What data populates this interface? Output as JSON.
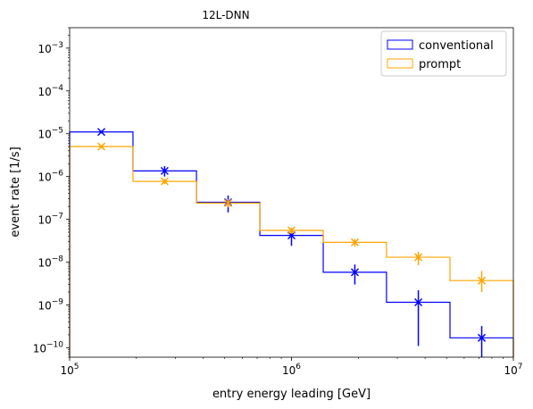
{
  "chart_data": {
    "type": "histogram",
    "title": "12L-DNN",
    "xlabel": "entry energy leading [GeV]",
    "ylabel": "event rate [1/s]",
    "xscale": "log",
    "yscale": "log",
    "xlim": [
      100000,
      10000000
    ],
    "ylim": [
      6e-11,
      0.003
    ],
    "legend_position": "top-right",
    "bin_edges": [
      100000,
      193000,
      373000,
      720000,
      1390000,
      2680000,
      5180000,
      10000000
    ],
    "bin_centers": [
      139000,
      268000,
      518000,
      1000000,
      1930000,
      3730000,
      7200000
    ],
    "x_ticks": [
      {
        "value": 100000,
        "base": "10",
        "exp": "5"
      },
      {
        "value": 1000000,
        "base": "10",
        "exp": "6"
      },
      {
        "value": 10000000,
        "base": "10",
        "exp": "7"
      }
    ],
    "y_ticks": [
      {
        "value": 1e-10,
        "base": "10",
        "exp": "−10"
      },
      {
        "value": 1e-09,
        "base": "10",
        "exp": "−9"
      },
      {
        "value": 1e-08,
        "base": "10",
        "exp": "−8"
      },
      {
        "value": 1e-07,
        "base": "10",
        "exp": "−7"
      },
      {
        "value": 1e-06,
        "base": "10",
        "exp": "−6"
      },
      {
        "value": 1e-05,
        "base": "10",
        "exp": "−5"
      },
      {
        "value": 0.0001,
        "base": "10",
        "exp": "−4"
      },
      {
        "value": 0.001,
        "base": "10",
        "exp": "−3"
      }
    ],
    "series": [
      {
        "name": "conventional",
        "color": "#0000ff",
        "values": [
          1.1e-05,
          1.35e-06,
          2.5e-07,
          4.2e-08,
          5.8e-09,
          1.15e-09,
          1.7e-10
        ],
        "err_low": [
          1.02e-05,
          1e-06,
          1.45e-07,
          2.4e-08,
          3e-09,
          1.1e-10,
          6e-11
        ],
        "err_high": [
          1.18e-05,
          1.75e-06,
          3.6e-07,
          5.9e-08,
          8.8e-09,
          2.2e-09,
          3.2e-10
        ]
      },
      {
        "name": "prompt",
        "color": "#ffa500",
        "values": [
          5e-06,
          7.7e-07,
          2.4e-07,
          5.5e-08,
          2.9e-08,
          1.3e-08,
          3.7e-09
        ],
        "err_low": [
          4.6e-06,
          6.7e-07,
          1.9e-07,
          4.6e-08,
          2.3e-08,
          8.5e-09,
          2e-09
        ],
        "err_high": [
          5.4e-06,
          8.7e-07,
          2.9e-07,
          6.4e-08,
          3.5e-08,
          1.75e-08,
          6.2e-09
        ]
      }
    ]
  }
}
